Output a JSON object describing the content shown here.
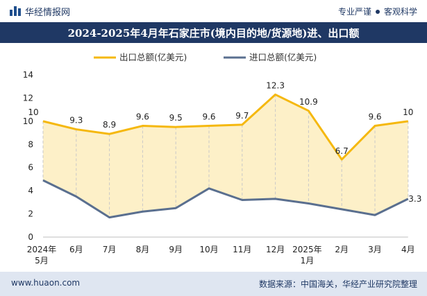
{
  "header": {
    "logo_text": "华经情报网",
    "tagline_left": "专业严谨",
    "tagline_right": "客观科学"
  },
  "title": "2024-2025年4月年石家庄市(境内目的地/货源地)进、出口额",
  "footer": {
    "url": "www.huaon.com",
    "source": "数据来源：中国海关，华经产业研究院整理"
  },
  "colors": {
    "export": "#f5b80f",
    "import": "#5a6f8f",
    "fill": "#fdf0c8",
    "title_bg": "#1f3864",
    "footer_bg": "#dfe6f1"
  },
  "chart_data": {
    "type": "line",
    "categories": [
      [
        "2024年",
        "5月"
      ],
      [
        "6月"
      ],
      [
        "7月"
      ],
      [
        "8月"
      ],
      [
        "9月"
      ],
      [
        "10月"
      ],
      [
        "11月"
      ],
      [
        "12月"
      ],
      [
        "2025年",
        "1月"
      ],
      [
        "2月"
      ],
      [
        "3月"
      ],
      [
        "4月"
      ]
    ],
    "series": [
      {
        "name": "出口总额(亿美元)",
        "values": [
          10,
          9.3,
          8.9,
          9.6,
          9.5,
          9.6,
          9.7,
          12.3,
          10.9,
          6.7,
          9.6,
          10
        ],
        "labels": [
          "10",
          "9.3",
          "8.9",
          "9.6",
          "9.5",
          "9.6",
          "9.7",
          "12.3",
          "10.9",
          "6.7",
          "9.6",
          "10"
        ]
      },
      {
        "name": "进口总额(亿美元)",
        "values": [
          4.9,
          3.5,
          1.7,
          2.2,
          2.5,
          4.2,
          3.2,
          3.3,
          2.9,
          2.4,
          1.9,
          3.3
        ],
        "labels": [
          "",
          "",
          "",
          "",
          "",
          "",
          "",
          "",
          "",
          "",
          "",
          "3.3"
        ]
      }
    ],
    "yticks": [
      "0",
      "2",
      "4",
      "6",
      "8",
      "10",
      "12",
      "14"
    ],
    "ylim": [
      0,
      14
    ],
    "grid": false,
    "legend": "top-center"
  }
}
